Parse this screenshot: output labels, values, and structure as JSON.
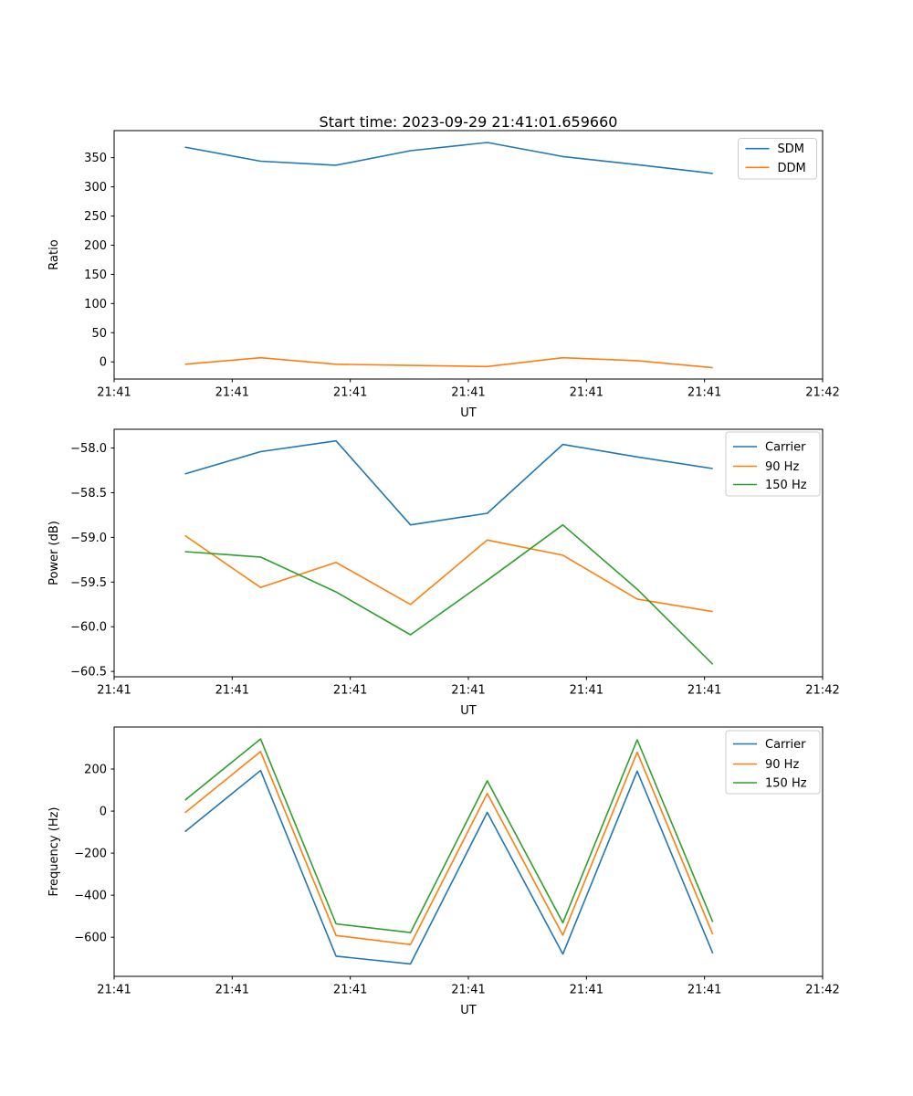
{
  "figure": {
    "title": "Start time: 2023-09-29 21:41:01.659660",
    "background_color": "#ffffff",
    "text_color": "#000000",
    "axis_color": "#000000",
    "legend_border_color": "#cccccc"
  },
  "chart_data": [
    {
      "type": "line",
      "title": "",
      "xlabel": "UT",
      "ylabel": "Ratio",
      "grid": false,
      "legend_location": "upper right",
      "xlim_seconds": [
        0,
        60
      ],
      "x_tick_seconds": [
        0,
        10,
        20,
        30,
        40,
        50,
        60
      ],
      "x_tick_labels": [
        "21:41",
        "21:41",
        "21:41",
        "21:41",
        "21:41",
        "21:41",
        "21:42"
      ],
      "ylim": [
        -29.4,
        396.4
      ],
      "y_ticks": [
        {
          "value": 0,
          "label": "0"
        },
        {
          "value": 50,
          "label": "50"
        },
        {
          "value": 100,
          "label": "100"
        },
        {
          "value": 150,
          "label": "150"
        },
        {
          "value": 200,
          "label": "200"
        },
        {
          "value": 250,
          "label": "250"
        },
        {
          "value": 300,
          "label": "300"
        },
        {
          "value": 350,
          "label": "350"
        }
      ],
      "x_seconds": [
        6.0,
        12.4,
        18.8,
        25.1,
        31.6,
        38.0,
        44.3,
        50.7
      ],
      "series": [
        {
          "name": "SDM",
          "color": "#1f77b4",
          "values": [
            368,
            344,
            337,
            362,
            376,
            352,
            338,
            323
          ]
        },
        {
          "name": "DDM",
          "color": "#ff7f0e",
          "values": [
            -4,
            7,
            -4,
            -6,
            -8,
            7,
            2,
            -10
          ]
        }
      ]
    },
    {
      "type": "line",
      "title": "",
      "xlabel": "UT",
      "ylabel": "Power (dB)",
      "grid": false,
      "legend_location": "upper right",
      "xlim_seconds": [
        0,
        60
      ],
      "x_tick_seconds": [
        0,
        10,
        20,
        30,
        40,
        50,
        60
      ],
      "x_tick_labels": [
        "21:41",
        "21:41",
        "21:41",
        "21:41",
        "21:41",
        "21:41",
        "21:42"
      ],
      "ylim": [
        -60.56,
        -57.79
      ],
      "y_ticks": [
        {
          "value": -58.0,
          "label": "−58.0"
        },
        {
          "value": -58.5,
          "label": "−58.5"
        },
        {
          "value": -59.0,
          "label": "−59.0"
        },
        {
          "value": -59.5,
          "label": "−59.5"
        },
        {
          "value": -60.0,
          "label": "−60.0"
        },
        {
          "value": -60.5,
          "label": "−60.5"
        }
      ],
      "x_seconds": [
        6.0,
        12.4,
        18.8,
        25.1,
        31.6,
        38.0,
        44.3,
        50.7
      ],
      "series": [
        {
          "name": "Carrier",
          "color": "#1f77b4",
          "values": [
            -58.29,
            -58.04,
            -57.92,
            -58.86,
            -58.73,
            -57.96,
            -58.1,
            -58.23
          ]
        },
        {
          "name": "90 Hz",
          "color": "#ff7f0e",
          "values": [
            -58.98,
            -59.56,
            -59.28,
            -59.75,
            -59.03,
            -59.2,
            -59.69,
            -59.83
          ]
        },
        {
          "name": "150 Hz",
          "color": "#2ca02c",
          "values": [
            -59.16,
            -59.22,
            -59.61,
            -60.09,
            -59.48,
            -58.86,
            -59.58,
            -60.42
          ]
        }
      ]
    },
    {
      "type": "line",
      "title": "",
      "xlabel": "UT",
      "ylabel": "Frequency (Hz)",
      "grid": false,
      "legend_location": "upper right",
      "xlim_seconds": [
        0,
        60
      ],
      "x_tick_seconds": [
        0,
        10,
        20,
        30,
        40,
        50,
        60
      ],
      "x_tick_labels": [
        "21:41",
        "21:41",
        "21:41",
        "21:41",
        "21:41",
        "21:41",
        "21:42"
      ],
      "ylim": [
        -786,
        400
      ],
      "y_ticks": [
        {
          "value": 200,
          "label": "200"
        },
        {
          "value": 0,
          "label": "0"
        },
        {
          "value": -200,
          "label": "−200"
        },
        {
          "value": -400,
          "label": "−400"
        },
        {
          "value": -600,
          "label": "−600"
        }
      ],
      "x_seconds": [
        6.0,
        12.4,
        18.8,
        25.1,
        31.6,
        38.0,
        44.3,
        50.7
      ],
      "series": [
        {
          "name": "Carrier",
          "color": "#1f77b4",
          "values": [
            -98,
            193,
            -690,
            -727,
            -6,
            -680,
            190,
            -676
          ]
        },
        {
          "name": "90 Hz",
          "color": "#ff7f0e",
          "values": [
            -8,
            283,
            -592,
            -635,
            84,
            -590,
            280,
            -586
          ]
        },
        {
          "name": "150 Hz",
          "color": "#2ca02c",
          "values": [
            52,
            343,
            -536,
            -578,
            144,
            -531,
            339,
            -527
          ]
        }
      ]
    }
  ]
}
